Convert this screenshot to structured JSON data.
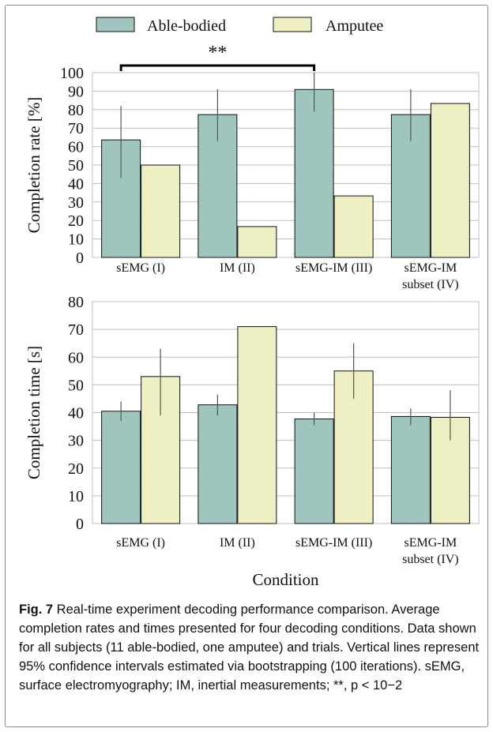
{
  "legend": {
    "items": [
      {
        "label": "Able-bodied",
        "color": "#9fc5be"
      },
      {
        "label": "Amputee",
        "color": "#eeefc2"
      }
    ]
  },
  "significance": {
    "label": "**",
    "between": [
      "sEMG (I)",
      "sEMG-IM (III)"
    ],
    "series": "Able-bodied"
  },
  "colors": {
    "able_bodied": "#9fc5be",
    "amputee": "#eeefc2",
    "bar_stroke": "#111111",
    "error_bar": "#555555",
    "grid": "#bfbfbf"
  },
  "chart_data": [
    {
      "type": "bar",
      "ylabel": "Completion rate [%]",
      "ylim": [
        0,
        100
      ],
      "yticks": [
        0,
        10,
        20,
        30,
        40,
        50,
        60,
        70,
        80,
        90,
        100
      ],
      "categories": [
        [
          "sEMG (I)"
        ],
        [
          "IM (II)"
        ],
        [
          "sEMG-IM (III)"
        ],
        [
          "sEMG-IM",
          "subset (IV)"
        ]
      ],
      "grid": true,
      "series": [
        {
          "name": "Able-bodied",
          "values": [
            63.6,
            77.3,
            90.9,
            77.3
          ],
          "ci": [
            [
              43,
              82
            ],
            [
              63,
              91
            ],
            [
              79,
              100
            ],
            [
              63,
              91
            ]
          ]
        },
        {
          "name": "Amputee",
          "values": [
            50,
            16.7,
            33.3,
            83.3
          ],
          "ci": [
            null,
            null,
            null,
            null
          ]
        }
      ]
    },
    {
      "type": "bar",
      "ylabel": "Completion time [s]",
      "xlabel": "Condition",
      "ylim": [
        0,
        80
      ],
      "yticks": [
        0,
        10,
        20,
        30,
        40,
        50,
        60,
        70,
        80
      ],
      "categories": [
        [
          "sEMG (I)"
        ],
        [
          "IM (II)"
        ],
        [
          "sEMG-IM (III)"
        ],
        [
          "sEMG-IM",
          "subset (IV)"
        ]
      ],
      "grid": true,
      "series": [
        {
          "name": "Able-bodied",
          "values": [
            40.5,
            42.8,
            37.7,
            38.6
          ],
          "ci": [
            [
              37,
              44
            ],
            [
              39,
              46.5
            ],
            [
              35.5,
              40
            ],
            [
              35.5,
              41.5
            ]
          ]
        },
        {
          "name": "Amputee",
          "values": [
            53,
            71,
            55,
            38.3
          ],
          "ci": [
            [
              39,
              63
            ],
            null,
            [
              45,
              65
            ],
            [
              30,
              48
            ]
          ]
        }
      ]
    }
  ],
  "caption": {
    "label": "Fig. 7",
    "text": " Real-time experiment decoding performance comparison. Average completion rates and times presented for four decoding conditions. Data shown for all subjects (11 able-bodied, one amputee) and trials. Vertical lines represent 95% confidence intervals estimated via bootstrapping (100 iterations). sEMG, surface electromyography; IM, inertial measurements; **, p < 10−2"
  }
}
